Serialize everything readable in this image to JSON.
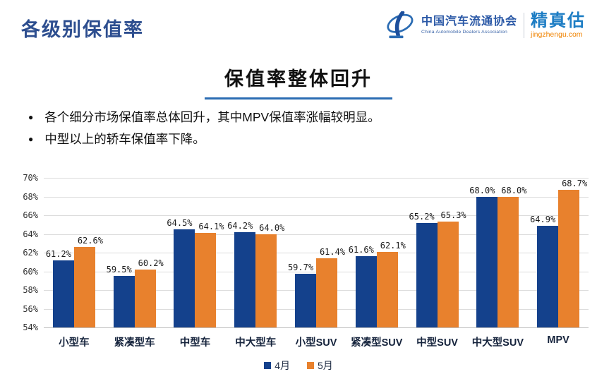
{
  "header": {
    "page_title": "各级别保值率",
    "logo": {
      "org_name": "中国汽车流通协会",
      "org_name_en": "China Automobile Dealers Association",
      "brand_name": "精真估",
      "brand_site": "jingzhengu.com"
    }
  },
  "slide": {
    "section_title": "保值率整体回升",
    "bullets": [
      "各个细分市场保值率总体回升，其中MPV保值率涨幅较明显。",
      "中型以上的轿车保值率下降。"
    ]
  },
  "chart_data": {
    "type": "bar",
    "title": "保值率整体回升",
    "categories": [
      "小型车",
      "紧凑型车",
      "中型车",
      "中大型车",
      "小型SUV",
      "紧凑型SUV",
      "中型SUV",
      "中大型SUV",
      "MPV"
    ],
    "series": [
      {
        "name": "4月",
        "color": "#14418c",
        "values": [
          61.2,
          59.5,
          64.5,
          64.2,
          59.7,
          61.6,
          65.2,
          68.0,
          64.9
        ]
      },
      {
        "name": "5月",
        "color": "#e8812d",
        "values": [
          62.6,
          60.2,
          64.1,
          64.0,
          61.4,
          62.1,
          65.3,
          68.0,
          68.7
        ]
      }
    ],
    "value_suffix": "%",
    "ylim": [
      54,
      70
    ],
    "ytick_labels": [
      "54%",
      "56%",
      "58%",
      "60%",
      "62%",
      "64%",
      "66%",
      "68%",
      "70%"
    ],
    "grid": "horizontal",
    "legend_position": "bottom"
  },
  "colors": {
    "title_blue": "#2d4e8f",
    "underline_blue": "#2b6cb3",
    "april_bar": "#14418c",
    "may_bar": "#e8812d",
    "brand_blue": "#1d7dc4",
    "brand_orange": "#f08300"
  }
}
